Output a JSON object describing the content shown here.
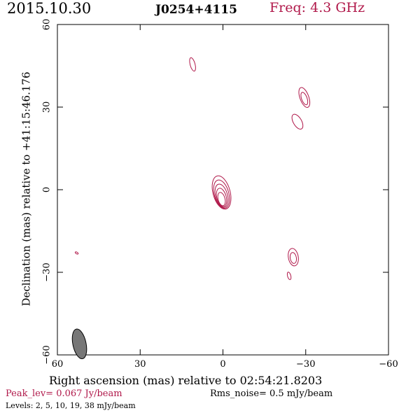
{
  "header": {
    "date": "2015.10.30",
    "source": "J0254+4115",
    "frequency": "Freq: 4.3 GHz"
  },
  "colors": {
    "contour": "#b0184a",
    "beam": "#777777",
    "axes": "#000000"
  },
  "chart_data": {
    "type": "contour",
    "xlabel": "Right ascension (mas) relative to 02:54:21.8203",
    "ylabel": "Declination (mas) relative to +41:15:46.176",
    "xlim": [
      60,
      -60
    ],
    "ylim": [
      -60,
      60
    ],
    "x_ticks": [
      60,
      30,
      0,
      -30,
      -60
    ],
    "y_ticks": [
      -60,
      -30,
      0,
      30,
      60
    ],
    "x_tick_labels": [
      "60",
      "30",
      "0",
      "−30",
      "−60"
    ],
    "y_tick_labels": [
      "−60",
      "−30",
      "0",
      "30",
      "60"
    ],
    "peak_text": "Peak_lev=  0.067 Jy/beam",
    "rms_text": "Rms_noise=  0.5 mJy/beam",
    "levels_text": "Levels:   2,   5,  10,  19,  38 mJy/beam",
    "contour_levels_mJy": [
      2,
      5,
      10,
      19,
      38
    ],
    "components": [
      {
        "name": "core",
        "x": 0.5,
        "y": -1.0,
        "levels": 5,
        "rx": 3.1,
        "ry": 6.2,
        "angle": -15,
        "dx": 0,
        "dy": -0.6
      },
      {
        "name": "jet-south",
        "x": -25.5,
        "y": -24.5,
        "levels": 2,
        "rx": 1.8,
        "ry": 3.2,
        "angle": -10,
        "dx": 0,
        "dy": -0.3
      },
      {
        "name": "spot-south",
        "x": -24.0,
        "y": -31.3,
        "levels": 1,
        "rx": 0.6,
        "ry": 1.4,
        "angle": -15,
        "dx": 0,
        "dy": 0
      },
      {
        "name": "knot-ne",
        "x": -29.5,
        "y": 33.5,
        "levels": 2,
        "rx": 1.6,
        "ry": 3.8,
        "angle": -20,
        "dx": 0,
        "dy": -0.4
      },
      {
        "name": "knot-e",
        "x": -27.0,
        "y": 24.7,
        "levels": 1,
        "rx": 1.5,
        "ry": 3.0,
        "angle": -30,
        "dx": 0,
        "dy": 0
      },
      {
        "name": "knot-n",
        "x": 11.0,
        "y": 45.5,
        "levels": 1,
        "rx": 0.9,
        "ry": 2.5,
        "angle": -15,
        "dx": 0,
        "dy": 0
      },
      {
        "name": "spot-w",
        "x": 53.0,
        "y": -23.0,
        "levels": 1,
        "rx": 0.3,
        "ry": 0.6,
        "angle": -60,
        "dx": 0,
        "dy": 0
      }
    ],
    "beam": {
      "x": 52.0,
      "y": -56.0,
      "major": 5.5,
      "minor": 2.4,
      "angle": -12
    }
  }
}
